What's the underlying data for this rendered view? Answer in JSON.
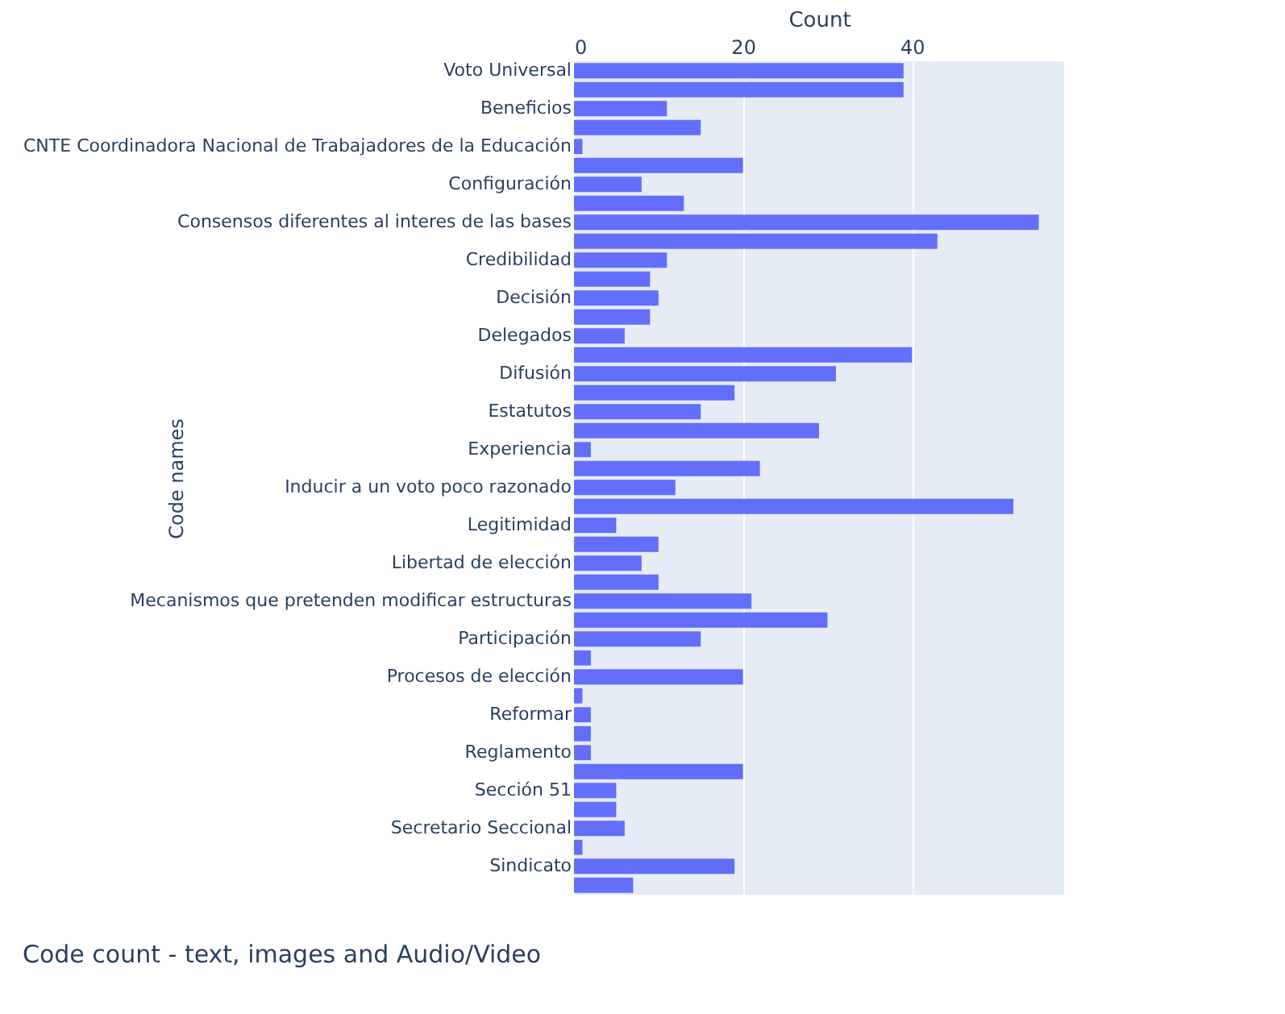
{
  "chart_data": {
    "type": "bar",
    "orientation": "horizontal",
    "title": "Code count - text, images and Audio/Video",
    "xlabel": "Count",
    "ylabel": "Code names",
    "categories": [
      "Voto Universal",
      null,
      "Beneficios",
      null,
      "CNTE Coordinadora Nacional de Trabajadores de la Educación",
      null,
      "Configuración",
      null,
      "Consensos diferentes al interes de las bases",
      null,
      "Credibilidad",
      null,
      "Decisión",
      null,
      "Delegados",
      null,
      "Difusión",
      null,
      "Estatutos",
      null,
      "Experiencia",
      null,
      "Inducir a un voto poco razonado",
      null,
      "Legitimidad",
      null,
      "Libertad de elección",
      null,
      "Mecanismos que pretenden modificar estructuras",
      null,
      "Participación",
      null,
      "Procesos de elección",
      null,
      "Reformar",
      null,
      "Reglamento",
      null,
      "Sección 51",
      null,
      "Secretario Seccional",
      null,
      "Sindicato",
      null
    ],
    "values": [
      39,
      39,
      11,
      15,
      1,
      20,
      8,
      13,
      55,
      43,
      11,
      9,
      10,
      9,
      6,
      40,
      31,
      19,
      15,
      29,
      2,
      22,
      12,
      52,
      5,
      10,
      8,
      10,
      21,
      30,
      15,
      2,
      20,
      1,
      2,
      2,
      2,
      20,
      5,
      5,
      6,
      1,
      19,
      7
    ],
    "color": "#636efa",
    "xlim": [
      0,
      58
    ],
    "xticks": [
      0,
      20,
      40
    ],
    "grid": "x"
  }
}
